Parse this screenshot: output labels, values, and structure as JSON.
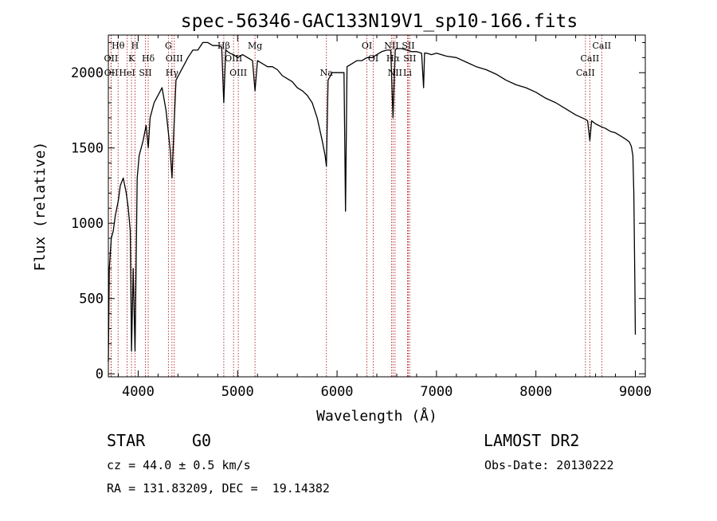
{
  "chart_data": {
    "type": "line",
    "title": "spec-56346-GAC133N19V1_sp10-166.fits",
    "xlabel": "Wavelength (Å)",
    "ylabel": "Flux (relative)",
    "xlim": [
      3700,
      9100
    ],
    "ylim": [
      -20,
      2250
    ],
    "xticks": [
      4000,
      5000,
      6000,
      7000,
      8000,
      9000
    ],
    "yticks": [
      0,
      500,
      1000,
      1500,
      2000
    ],
    "grid": false,
    "series": [
      {
        "x": [
          3700,
          3710,
          3730,
          3750,
          3770,
          3800,
          3820,
          3850,
          3880,
          3900,
          3920,
          3933,
          3950,
          3968,
          3990,
          4010,
          4050,
          4080,
          4101,
          4120,
          4160,
          4200,
          4240,
          4280,
          4320,
          4340,
          4361,
          4380,
          4420,
          4460,
          4500,
          4550,
          4600,
          4650,
          4700,
          4750,
          4800,
          4840,
          4861,
          4880,
          4920,
          4960,
          5000,
          5050,
          5100,
          5150,
          5175,
          5200,
          5250,
          5300,
          5350,
          5400,
          5450,
          5500,
          5550,
          5600,
          5650,
          5700,
          5750,
          5800,
          5850,
          5880,
          5893,
          5910,
          5950,
          6000,
          6050,
          6070,
          6085,
          6100,
          6150,
          6200,
          6250,
          6300,
          6350,
          6400,
          6450,
          6500,
          6540,
          6563,
          6585,
          6600,
          6650,
          6700,
          6750,
          6800,
          6850,
          6870,
          6880,
          6900,
          6950,
          7000,
          7100,
          7200,
          7300,
          7400,
          7500,
          7600,
          7700,
          7800,
          7900,
          8000,
          8100,
          8200,
          8300,
          8400,
          8498,
          8520,
          8542,
          8560,
          8600,
          8662,
          8700,
          8750,
          8800,
          8850,
          8900,
          8940,
          8960,
          8975,
          8985,
          8995,
          9000
        ],
        "y": [
          80,
          700,
          900,
          950,
          1050,
          1150,
          1250,
          1300,
          1200,
          1100,
          950,
          150,
          700,
          150,
          1300,
          1450,
          1550,
          1650,
          1500,
          1700,
          1800,
          1850,
          1900,
          1750,
          1500,
          1300,
          1650,
          1950,
          2000,
          2050,
          2100,
          2150,
          2150,
          2200,
          2200,
          2180,
          2180,
          2170,
          1800,
          2150,
          2130,
          2120,
          2100,
          2120,
          2100,
          2080,
          1880,
          2080,
          2060,
          2040,
          2040,
          2020,
          1980,
          1960,
          1940,
          1900,
          1880,
          1850,
          1800,
          1700,
          1550,
          1450,
          1380,
          1950,
          2000,
          2000,
          2000,
          2000,
          1080,
          2040,
          2060,
          2080,
          2080,
          2100,
          2100,
          2120,
          2140,
          2150,
          2150,
          1700,
          2150,
          2160,
          2160,
          2150,
          2140,
          2140,
          2130,
          1900,
          2130,
          2130,
          2120,
          2130,
          2110,
          2100,
          2070,
          2040,
          2020,
          1990,
          1950,
          1920,
          1900,
          1870,
          1830,
          1800,
          1760,
          1720,
          1690,
          1680,
          1550,
          1680,
          1660,
          1640,
          1630,
          1610,
          1600,
          1580,
          1560,
          1540,
          1510,
          1450,
          1200,
          600,
          260
        ]
      }
    ],
    "emission_lines": [
      {
        "name": "Hθ",
        "wavelength": 3798
      },
      {
        "name": "OII",
        "wavelength": 3727
      },
      {
        "name": "OII",
        "wavelength": 3729
      },
      {
        "name": "H",
        "wavelength": 3968
      },
      {
        "name": "K",
        "wavelength": 3933
      },
      {
        "name": "HeI",
        "wavelength": 3889
      },
      {
        "name": "SII",
        "wavelength": 4072
      },
      {
        "name": "Hδ",
        "wavelength": 4101
      },
      {
        "name": "G",
        "wavelength": 4304
      },
      {
        "name": "OIII",
        "wavelength": 4363
      },
      {
        "name": "Hγ",
        "wavelength": 4340
      },
      {
        "name": "Hβ",
        "wavelength": 4861
      },
      {
        "name": "OIII",
        "wavelength": 4959
      },
      {
        "name": "OIII",
        "wavelength": 5007
      },
      {
        "name": "Mg",
        "wavelength": 5175
      },
      {
        "name": "Na",
        "wavelength": 5893
      },
      {
        "name": "OI",
        "wavelength": 6300
      },
      {
        "name": "OI",
        "wavelength": 6364
      },
      {
        "name": "NII",
        "wavelength": 6548
      },
      {
        "name": "Hα",
        "wavelength": 6563
      },
      {
        "name": "NII",
        "wavelength": 6583
      },
      {
        "name": "SII",
        "wavelength": 6716
      },
      {
        "name": "SII",
        "wavelength": 6731
      },
      {
        "name": "Li",
        "wavelength": 6708
      },
      {
        "name": "CaII",
        "wavelength": 8498
      },
      {
        "name": "CaII",
        "wavelength": 8542
      },
      {
        "name": "CaII",
        "wavelength": 8662
      }
    ]
  },
  "info": {
    "object_class": "STAR",
    "subclass": "G0",
    "survey": "LAMOST DR2",
    "redshift": "cz = 44.0 ± 0.5 km/s",
    "obs_date": "Obs-Date: 20130222",
    "coords": "RA = 131.83209, DEC =  19.14382"
  },
  "colors": {
    "line_marker": "#b22222",
    "spectrum": "#000000",
    "background": "#ffffff"
  }
}
